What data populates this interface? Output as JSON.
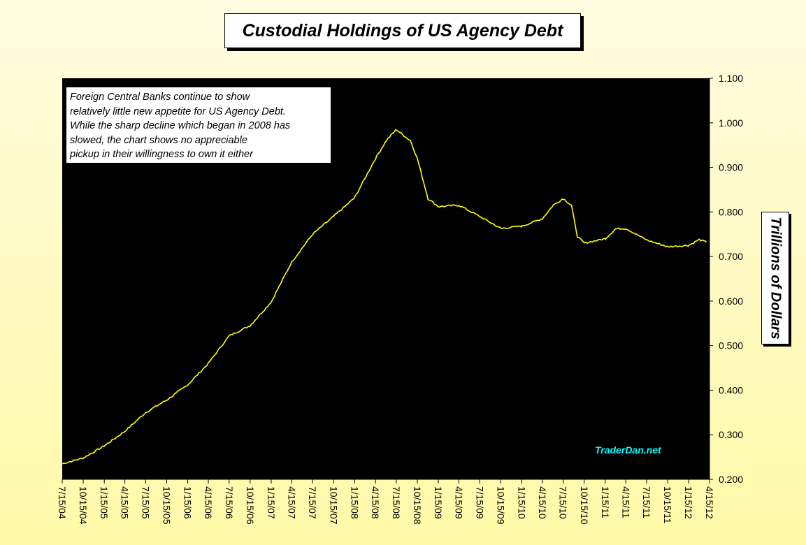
{
  "title": "Custodial Holdings of US Agency Debt",
  "annotation": {
    "lines": [
      "Foreign Central Banks continue to show",
      "relatively little new appetite for US Agency Debt.",
      "While the sharp decline which began in 2008 has",
      "slowed, the chart shows no appreciable",
      "pickup in their willingness to own it either"
    ]
  },
  "watermark": "TraderDan.net",
  "colors": {
    "plot_background": "#000000",
    "line": "#ffff00",
    "watermark": "#00ffff",
    "page_background": "#fffaa8"
  },
  "chart_data": {
    "type": "line",
    "title": "Custodial Holdings of US Agency Debt",
    "xlabel": "",
    "ylabel": "Trillions of Dollars",
    "ylim": [
      0.2,
      1.1
    ],
    "y_axis_side": "right",
    "y_ticks": [
      "0.200",
      "0.300",
      "0.400",
      "0.500",
      "0.600",
      "0.700",
      "0.800",
      "0.900",
      "1.000",
      "1.100"
    ],
    "x_ticks": [
      "7/15/04",
      "10/15/04",
      "1/15/05",
      "4/15/05",
      "7/15/05",
      "10/15/05",
      "1/15/06",
      "4/15/06",
      "7/15/06",
      "10/15/06",
      "1/15/07",
      "4/15/07",
      "7/15/07",
      "10/15/07",
      "1/15/08",
      "4/15/08",
      "7/15/08",
      "10/15/08",
      "1/15/09",
      "4/15/09",
      "7/15/09",
      "10/15/09",
      "1/15/10",
      "4/15/10",
      "7/15/10",
      "10/15/10",
      "1/15/11",
      "4/15/11",
      "7/15/11",
      "10/15/11",
      "1/15/12",
      "4/15/12"
    ],
    "grid": false,
    "series": [
      {
        "x": [
          "7/15/04",
          "10/15/04",
          "1/15/05",
          "4/15/05",
          "7/15/05",
          "10/15/05",
          "1/15/06",
          "4/15/06",
          "7/15/06",
          "10/15/06",
          "1/15/07",
          "4/15/07",
          "7/15/07",
          "10/15/07",
          "1/15/08",
          "4/15/08",
          "6/1/08",
          "7/15/08",
          "8/20/08",
          "9/15/08",
          "10/15/08",
          "12/1/08",
          "1/15/09",
          "4/15/09",
          "7/15/09",
          "10/15/09",
          "1/15/10",
          "4/15/10",
          "6/1/10",
          "7/15/10",
          "8/20/10",
          "9/15/10",
          "10/15/10",
          "1/15/11",
          "3/1/11",
          "4/15/11",
          "7/15/11",
          "10/15/11",
          "1/15/12",
          "3/1/12",
          "4/1/12"
        ],
        "values": [
          0.235,
          0.248,
          0.275,
          0.308,
          0.35,
          0.378,
          0.412,
          0.46,
          0.522,
          0.545,
          0.598,
          0.688,
          0.75,
          0.79,
          0.832,
          0.92,
          0.96,
          0.985,
          0.97,
          0.96,
          0.92,
          0.83,
          0.812,
          0.815,
          0.79,
          0.763,
          0.768,
          0.785,
          0.815,
          0.83,
          0.815,
          0.745,
          0.73,
          0.74,
          0.762,
          0.763,
          0.737,
          0.722,
          0.725,
          0.738,
          0.732
        ]
      }
    ]
  }
}
